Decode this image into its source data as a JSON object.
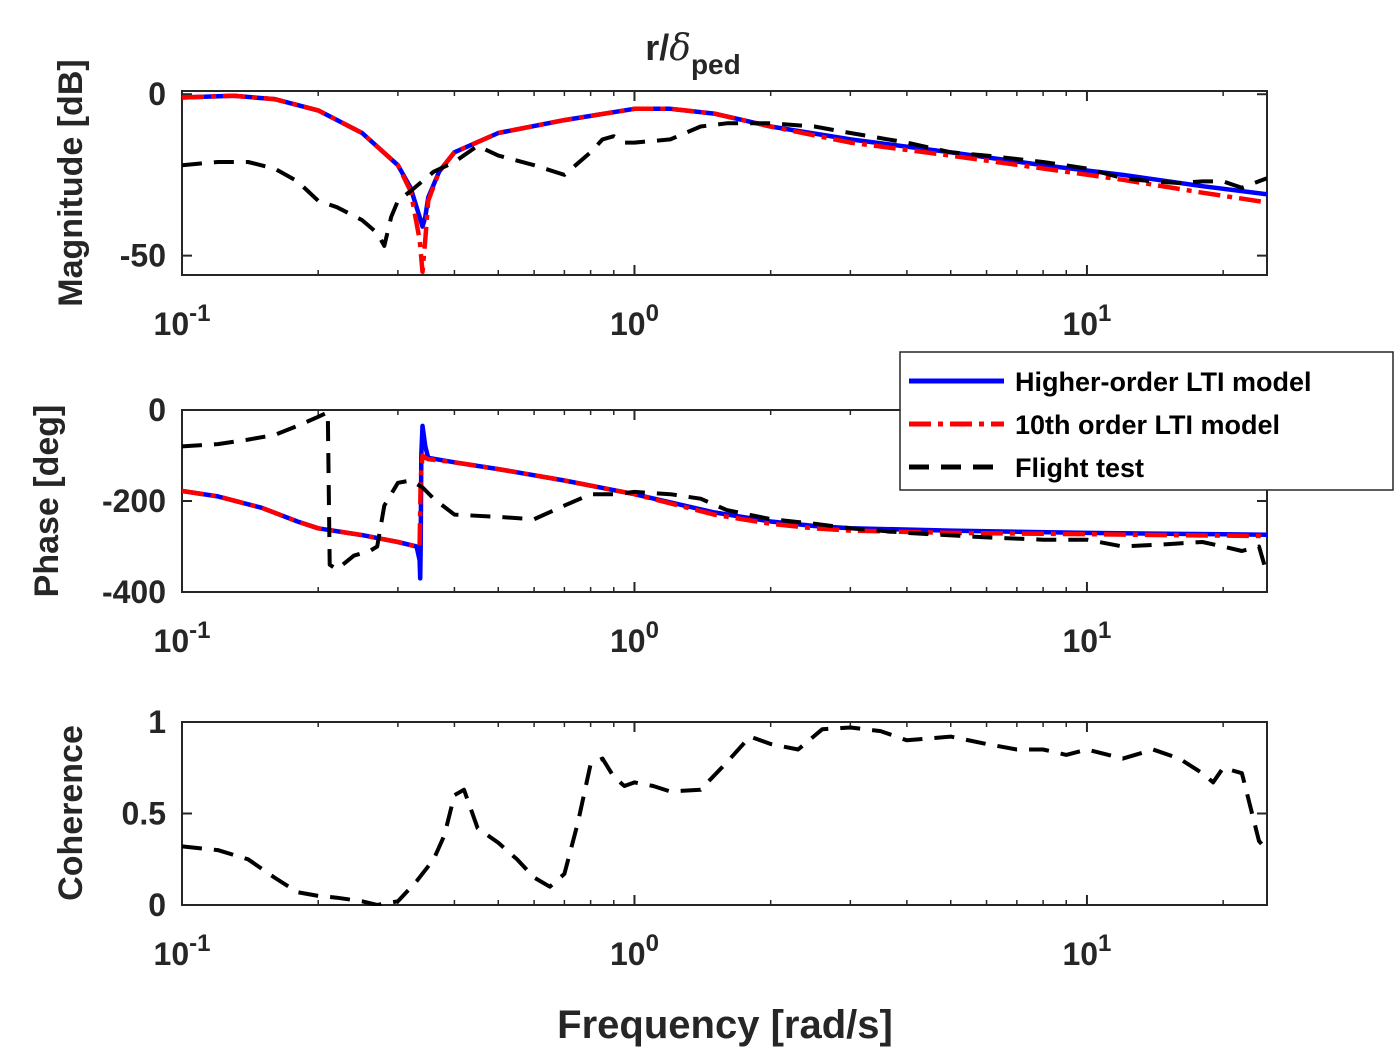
{
  "chart_data": {
    "type": "line",
    "title": "r/",
    "title_symbol": "δ",
    "title_subscript": "ped",
    "xlabel": "Frequency [rad/s]",
    "xscale": "log",
    "xlim": [
      0.1,
      25
    ],
    "xtick_labels": [
      {
        "base": "10",
        "exp": "-1",
        "value": 0.1
      },
      {
        "base": "10",
        "exp": "0",
        "value": 1
      },
      {
        "base": "10",
        "exp": "1",
        "value": 10
      }
    ],
    "legend": {
      "location": "right, between magnitude and phase panels",
      "entries": [
        {
          "label": "Higher-order LTI model",
          "color": "#0000ff",
          "style": "solid"
        },
        {
          "label": "10th order LTI model",
          "color": "#ff0000",
          "style": "dashdot"
        },
        {
          "label": "Flight test",
          "color": "#000000",
          "style": "dashed"
        }
      ]
    },
    "panels": [
      {
        "id": "magnitude",
        "ylabel": "Magnitude [dB]",
        "ylim": [
          -56,
          1
        ],
        "yticks": [
          0,
          -50
        ],
        "ytick_labels": [
          "0",
          "-50"
        ],
        "series": [
          {
            "name": "Higher-order LTI model",
            "color": "#0000ff",
            "x": [
              0.1,
              0.13,
              0.16,
              0.2,
              0.25,
              0.3,
              0.32,
              0.335,
              0.34,
              0.345,
              0.35,
              0.37,
              0.4,
              0.5,
              0.7,
              1.0,
              1.2,
              1.5,
              2,
              3,
              5,
              8,
              12,
              18,
              25
            ],
            "y": [
              -1,
              -0.5,
              -1.5,
              -5,
              -12,
              -22,
              -29,
              -38,
              -41,
              -38,
              -32,
              -24,
              -18,
              -12,
              -8,
              -4.5,
              -4.5,
              -6,
              -10,
              -14,
              -18,
              -22,
              -25,
              -28.5,
              -31
            ]
          },
          {
            "name": "10th order LTI model",
            "color": "#ff0000",
            "x": [
              0.1,
              0.13,
              0.16,
              0.2,
              0.25,
              0.3,
              0.32,
              0.335,
              0.34,
              0.345,
              0.35,
              0.37,
              0.4,
              0.5,
              0.7,
              1.0,
              1.2,
              1.5,
              2,
              3,
              5,
              8,
              12,
              18,
              25
            ],
            "y": [
              -1,
              -0.5,
              -1.5,
              -5,
              -12,
              -22,
              -30,
              -45,
              -55,
              -45,
              -33,
              -24,
              -18,
              -12,
              -8,
              -4.5,
              -4.5,
              -6,
              -10,
              -15,
              -19,
              -23,
              -26.5,
              -30.5,
              -33.5
            ]
          },
          {
            "name": "Flight test",
            "color": "#000000",
            "x": [
              0.1,
              0.12,
              0.14,
              0.16,
              0.18,
              0.2,
              0.22,
              0.25,
              0.27,
              0.28,
              0.29,
              0.3,
              0.32,
              0.36,
              0.4,
              0.45,
              0.5,
              0.6,
              0.7,
              0.8,
              0.85,
              0.9,
              0.95,
              1.0,
              1.2,
              1.4,
              1.6,
              2.0,
              2.5,
              3,
              4,
              5,
              6,
              8,
              10,
              12,
              14,
              16,
              18,
              20,
              22,
              25
            ],
            "y": [
              -22,
              -21,
              -21,
              -23,
              -27,
              -33,
              -35,
              -39,
              -43,
              -47,
              -38,
              -33,
              -30,
              -24,
              -21,
              -16,
              -19,
              -22,
              -25,
              -18,
              -14,
              -13,
              -15,
              -15,
              -14,
              -10,
              -9,
              -9,
              -10,
              -12,
              -15,
              -18,
              -19,
              -21,
              -23,
              -26,
              -27,
              -27.5,
              -27,
              -27,
              -29,
              -26
            ]
          }
        ]
      },
      {
        "id": "phase",
        "ylabel": "Phase [deg]",
        "ylim": [
          -400,
          0
        ],
        "yticks": [
          0,
          -200,
          -400
        ],
        "ytick_labels": [
          "0",
          "-200",
          "-400"
        ],
        "series": [
          {
            "name": "Higher-order LTI model",
            "color": "#0000ff",
            "x": [
              0.1,
              0.12,
              0.15,
              0.18,
              0.2,
              0.25,
              0.3,
              0.33,
              0.335,
              0.336,
              0.337,
              0.338,
              0.34,
              0.345,
              0.35,
              0.4,
              0.5,
              0.7,
              1.0,
              1.5,
              2.0,
              2.5,
              3,
              5,
              10,
              15,
              20,
              25
            ],
            "y": [
              -178,
              -190,
              -215,
              -245,
              -260,
              -275,
              -290,
              -300,
              -330,
              -370,
              -300,
              -100,
              -35,
              -80,
              -105,
              -115,
              -130,
              -155,
              -185,
              -225,
              -245,
              -255,
              -260,
              -265,
              -270,
              -272,
              -273,
              -274
            ]
          },
          {
            "name": "10th order LTI model",
            "color": "#ff0000",
            "x": [
              0.1,
              0.12,
              0.15,
              0.18,
              0.2,
              0.25,
              0.3,
              0.33,
              0.335,
              0.337,
              0.34,
              0.345,
              0.35,
              0.4,
              0.5,
              0.7,
              1.0,
              1.5,
              2.0,
              2.5,
              3,
              5,
              10,
              15,
              20,
              25
            ],
            "y": [
              -178,
              -190,
              -215,
              -245,
              -260,
              -275,
              -290,
              -300,
              -300,
              -150,
              -100,
              -105,
              -108,
              -115,
              -130,
              -155,
              -185,
              -230,
              -250,
              -260,
              -265,
              -270,
              -273,
              -275,
              -276,
              -277
            ]
          },
          {
            "name": "Flight test",
            "color": "#000000",
            "x": [
              0.1,
              0.12,
              0.14,
              0.16,
              0.18,
              0.2,
              0.21,
              0.212,
              0.22,
              0.24,
              0.26,
              0.27,
              0.28,
              0.3,
              0.32,
              0.34,
              0.36,
              0.4,
              0.5,
              0.6,
              0.7,
              0.8,
              0.9,
              1.0,
              1.2,
              1.4,
              1.6,
              2.0,
              2.5,
              3,
              4,
              6,
              8,
              10,
              12,
              15,
              18,
              20,
              22,
              24,
              25
            ],
            "y": [
              -80,
              -75,
              -65,
              -55,
              -35,
              -15,
              -5,
              -340,
              -350,
              -320,
              -310,
              -300,
              -210,
              -160,
              -155,
              -170,
              -195,
              -230,
              -235,
              -240,
              -210,
              -185,
              -185,
              -180,
              -185,
              -195,
              -220,
              -240,
              -250,
              -260,
              -270,
              -280,
              -285,
              -285,
              -300,
              -295,
              -290,
              -300,
              -310,
              -300,
              -360
            ]
          }
        ]
      },
      {
        "id": "coherence",
        "ylabel": "Coherence",
        "ylim": [
          0,
          1
        ],
        "yticks": [
          0,
          0.5,
          1
        ],
        "ytick_labels": [
          "0",
          "0.5",
          "1"
        ],
        "series": [
          {
            "name": "Flight test",
            "color": "#000000",
            "x": [
              0.1,
              0.12,
              0.14,
              0.16,
              0.18,
              0.2,
              0.22,
              0.25,
              0.27,
              0.3,
              0.33,
              0.36,
              0.38,
              0.4,
              0.42,
              0.45,
              0.5,
              0.55,
              0.6,
              0.65,
              0.7,
              0.75,
              0.8,
              0.85,
              0.9,
              0.95,
              1.0,
              1.1,
              1.2,
              1.4,
              1.6,
              1.8,
              2.0,
              2.3,
              2.6,
              3,
              3.5,
              4,
              5,
              6,
              7,
              8,
              9,
              10,
              12,
              14,
              16,
              18,
              19,
              20,
              22,
              24,
              25
            ],
            "y": [
              0.32,
              0.3,
              0.25,
              0.15,
              0.07,
              0.05,
              0.04,
              0.02,
              0.0,
              0.02,
              0.13,
              0.25,
              0.38,
              0.6,
              0.63,
              0.42,
              0.34,
              0.25,
              0.15,
              0.1,
              0.17,
              0.45,
              0.77,
              0.8,
              0.7,
              0.65,
              0.67,
              0.65,
              0.62,
              0.63,
              0.78,
              0.92,
              0.88,
              0.85,
              0.96,
              0.97,
              0.95,
              0.9,
              0.92,
              0.88,
              0.85,
              0.85,
              0.82,
              0.85,
              0.8,
              0.85,
              0.8,
              0.72,
              0.67,
              0.75,
              0.72,
              0.35,
              0.3
            ]
          }
        ]
      }
    ]
  }
}
